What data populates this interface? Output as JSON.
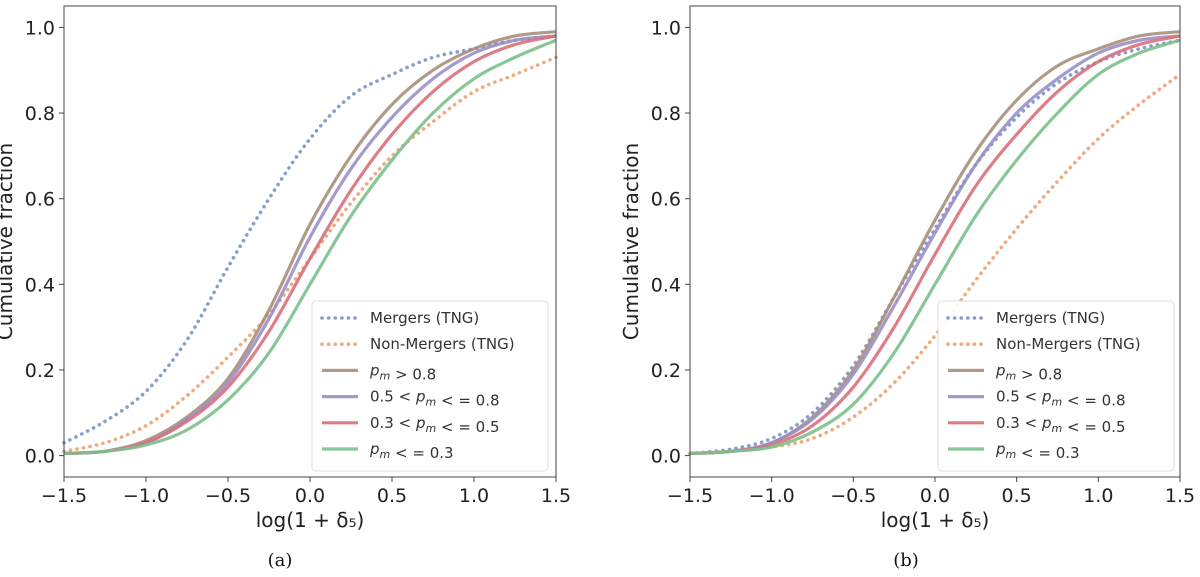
{
  "chart_data": [
    {
      "type": "line",
      "panel": "(a)",
      "xlabel": "log(1 + δ₅)",
      "ylabel": "Cumulative fraction",
      "xlim": [
        -1.5,
        1.5
      ],
      "ylim": [
        -0.05,
        1.05
      ],
      "xticks": [
        "−1.5",
        "−1.0",
        "−0.5",
        "0.0",
        "0.5",
        "1.0",
        "1.5"
      ],
      "yticks": [
        "0.0",
        "0.2",
        "0.4",
        "0.6",
        "0.8",
        "1.0"
      ],
      "grid": false,
      "legend": "lower-right",
      "series": [
        {
          "name": "Mergers (TNG)",
          "style": "dotted",
          "color": "#7b93c8",
          "x": [
            -1.5,
            -1.25,
            -1.0,
            -0.75,
            -0.5,
            -0.25,
            0.0,
            0.25,
            0.5,
            0.75,
            1.0,
            1.25,
            1.5
          ],
          "y": [
            0.03,
            0.08,
            0.15,
            0.27,
            0.44,
            0.6,
            0.74,
            0.84,
            0.89,
            0.93,
            0.95,
            0.97,
            0.98
          ]
        },
        {
          "name": "Non-Mergers (TNG)",
          "style": "dotted",
          "color": "#f0a070",
          "x": [
            -1.5,
            -1.25,
            -1.0,
            -0.75,
            -0.5,
            -0.25,
            0.0,
            0.25,
            0.5,
            0.75,
            1.0,
            1.25,
            1.5
          ],
          "y": [
            0.01,
            0.03,
            0.07,
            0.14,
            0.23,
            0.33,
            0.46,
            0.59,
            0.7,
            0.78,
            0.85,
            0.89,
            0.93
          ]
        },
        {
          "name": "p_m > 0.8",
          "style": "solid",
          "color": "#a88f7a",
          "x": [
            -1.5,
            -1.25,
            -1.0,
            -0.75,
            -0.5,
            -0.25,
            0.0,
            0.25,
            0.5,
            0.75,
            1.0,
            1.25,
            1.5
          ],
          "y": [
            0.005,
            0.01,
            0.035,
            0.09,
            0.18,
            0.34,
            0.54,
            0.7,
            0.82,
            0.9,
            0.95,
            0.98,
            0.99
          ]
        },
        {
          "name": "0.5 < p_m < = 0.8",
          "style": "solid",
          "color": "#9a8fc8",
          "x": [
            -1.5,
            -1.25,
            -1.0,
            -0.75,
            -0.5,
            -0.25,
            0.0,
            0.25,
            0.5,
            0.75,
            1.0,
            1.25,
            1.5
          ],
          "y": [
            0.005,
            0.01,
            0.03,
            0.085,
            0.17,
            0.32,
            0.51,
            0.67,
            0.79,
            0.88,
            0.94,
            0.97,
            0.98
          ]
        },
        {
          "name": "0.3 < p_m < = 0.5",
          "style": "solid",
          "color": "#d9707a",
          "x": [
            -1.5,
            -1.25,
            -1.0,
            -0.75,
            -0.5,
            -0.25,
            0.0,
            0.25,
            0.5,
            0.75,
            1.0,
            1.25,
            1.5
          ],
          "y": [
            0.005,
            0.01,
            0.03,
            0.08,
            0.16,
            0.29,
            0.46,
            0.62,
            0.75,
            0.85,
            0.92,
            0.96,
            0.98
          ]
        },
        {
          "name": "p_m < = 0.3",
          "style": "solid",
          "color": "#7cc08c",
          "x": [
            -1.5,
            -1.25,
            -1.0,
            -0.75,
            -0.5,
            -0.25,
            0.0,
            0.25,
            0.5,
            0.75,
            1.0,
            1.25,
            1.5
          ],
          "y": [
            0.005,
            0.01,
            0.025,
            0.06,
            0.13,
            0.24,
            0.4,
            0.56,
            0.69,
            0.8,
            0.88,
            0.93,
            0.97
          ]
        }
      ]
    },
    {
      "type": "line",
      "panel": "(b)",
      "xlabel": "log(1 + δ₅)",
      "ylabel": "Cumulative fraction",
      "xlim": [
        -1.5,
        1.5
      ],
      "ylim": [
        -0.05,
        1.05
      ],
      "xticks": [
        "−1.5",
        "−1.0",
        "−0.5",
        "0.0",
        "0.5",
        "1.0",
        "1.5"
      ],
      "yticks": [
        "0.0",
        "0.2",
        "0.4",
        "0.6",
        "0.8",
        "1.0"
      ],
      "grid": false,
      "legend": "lower-right",
      "series": [
        {
          "name": "Mergers (TNG)",
          "style": "dotted",
          "color": "#7b93c8",
          "x": [
            -1.5,
            -1.25,
            -1.0,
            -0.75,
            -0.5,
            -0.25,
            0.0,
            0.25,
            0.5,
            0.75,
            1.0,
            1.25,
            1.5
          ],
          "y": [
            0.005,
            0.015,
            0.04,
            0.1,
            0.21,
            0.37,
            0.53,
            0.68,
            0.79,
            0.87,
            0.92,
            0.95,
            0.97
          ]
        },
        {
          "name": "Non-Mergers (TNG)",
          "style": "dotted",
          "color": "#f0a070",
          "x": [
            -1.5,
            -1.25,
            -1.0,
            -0.75,
            -0.5,
            -0.25,
            0.0,
            0.25,
            0.5,
            0.75,
            1.0,
            1.25,
            1.5
          ],
          "y": [
            0.005,
            0.01,
            0.02,
            0.04,
            0.09,
            0.17,
            0.28,
            0.41,
            0.53,
            0.64,
            0.74,
            0.82,
            0.89
          ]
        },
        {
          "name": "p_m > 0.8",
          "style": "solid",
          "color": "#a88f7a",
          "x": [
            -1.5,
            -1.25,
            -1.0,
            -0.75,
            -0.5,
            -0.25,
            0.0,
            0.25,
            0.5,
            0.75,
            1.0,
            1.25,
            1.5
          ],
          "y": [
            0.005,
            0.01,
            0.03,
            0.09,
            0.2,
            0.37,
            0.55,
            0.71,
            0.83,
            0.91,
            0.95,
            0.98,
            0.99
          ]
        },
        {
          "name": "0.5 < p_m < = 0.8",
          "style": "solid",
          "color": "#9a8fc8",
          "x": [
            -1.5,
            -1.25,
            -1.0,
            -0.75,
            -0.5,
            -0.25,
            0.0,
            0.25,
            0.5,
            0.75,
            1.0,
            1.25,
            1.5
          ],
          "y": [
            0.005,
            0.01,
            0.03,
            0.085,
            0.19,
            0.35,
            0.52,
            0.68,
            0.8,
            0.88,
            0.94,
            0.97,
            0.98
          ]
        },
        {
          "name": "0.3 < p_m < = 0.5",
          "style": "solid",
          "color": "#d9707a",
          "x": [
            -1.5,
            -1.25,
            -1.0,
            -0.75,
            -0.5,
            -0.25,
            0.0,
            0.25,
            0.5,
            0.75,
            1.0,
            1.25,
            1.5
          ],
          "y": [
            0.005,
            0.01,
            0.025,
            0.07,
            0.16,
            0.3,
            0.47,
            0.63,
            0.75,
            0.85,
            0.92,
            0.96,
            0.98
          ]
        },
        {
          "name": "p_m < = 0.3",
          "style": "solid",
          "color": "#7cc08c",
          "x": [
            -1.5,
            -1.25,
            -1.0,
            -0.75,
            -0.5,
            -0.25,
            0.0,
            0.25,
            0.5,
            0.75,
            1.0,
            1.25,
            1.5
          ],
          "y": [
            0.005,
            0.01,
            0.02,
            0.055,
            0.12,
            0.24,
            0.4,
            0.56,
            0.69,
            0.8,
            0.89,
            0.94,
            0.97
          ]
        }
      ]
    }
  ]
}
